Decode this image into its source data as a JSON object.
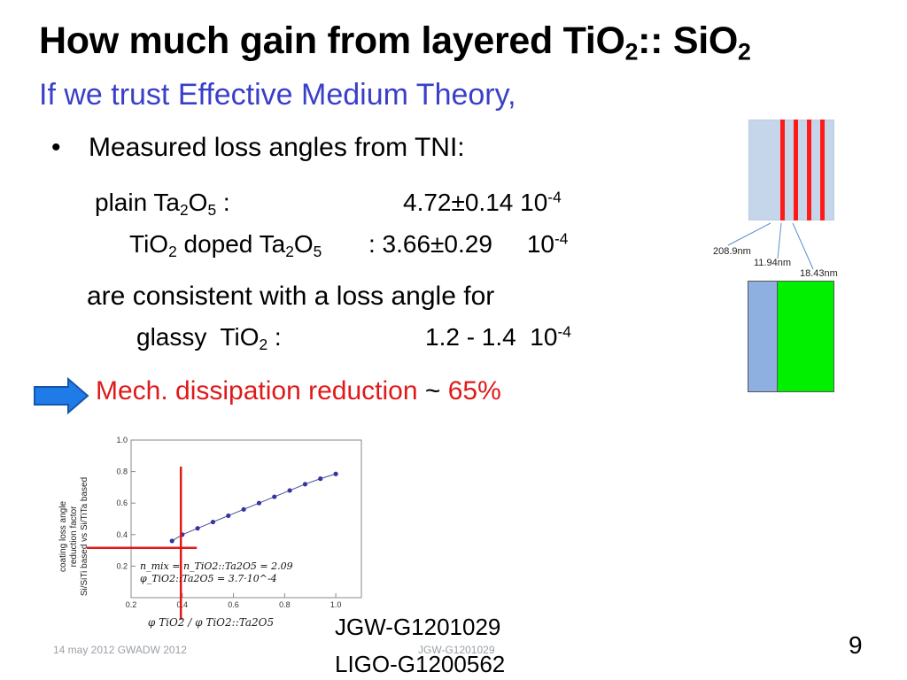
{
  "title": {
    "main": "How much gain from layered TiO",
    "sub1": "2",
    "mid": ":: SiO",
    "sub2": "2"
  },
  "subtitle": "If we trust Effective Medium Theory,",
  "bullet_char": "•",
  "bullet_text": "Measured loss angles from TNI:",
  "ta": {
    "label_a": "plain Ta",
    "s1": "2",
    "label_b": "O",
    "s2": "5",
    "label_c": " :",
    "value": "4.72±0.14 10",
    "exp": "-4"
  },
  "tio": {
    "label_a": "TiO",
    "s1": "2",
    "label_b": " doped Ta",
    "s2": "2",
    "label_c": "O",
    "s3": "5",
    "value": " : 3.66±0.29     10",
    "exp": "-4"
  },
  "consistent": "are consistent with a loss angle for",
  "glassy": {
    "label_a": "glassy  TiO",
    "s1": "2",
    "label_b": " :",
    "value": "1.2 - 1.4  10",
    "exp": "-4"
  },
  "reduction": {
    "text": "Mech. dissipation reduction ",
    "tilde": "~",
    "value": " 65%"
  },
  "stack_labels": {
    "a": "208.9nm",
    "b": "11.94nm",
    "c": "18.43nm"
  },
  "colors": {
    "title_blue": "#3a3fc8",
    "red": "#e01a1a",
    "arrow_blue": "#1f7be8",
    "green": "#00f000"
  },
  "chart_data": {
    "type": "line",
    "x": [
      0.36,
      0.4,
      0.46,
      0.52,
      0.58,
      0.64,
      0.7,
      0.76,
      0.82,
      0.88,
      0.94,
      1.0
    ],
    "y": [
      0.36,
      0.4,
      0.44,
      0.48,
      0.52,
      0.56,
      0.6,
      0.64,
      0.68,
      0.72,
      0.755,
      0.785
    ],
    "xlim": [
      0.2,
      1.1
    ],
    "ylim": [
      0.0,
      1.0
    ],
    "xticks": [
      "0.2",
      "0.4",
      "0.6",
      "0.8",
      "1.0"
    ],
    "yticks": [
      "0.2",
      "0.4",
      "0.6",
      "0.8",
      "1.0"
    ],
    "xlabel_html": "φ<sub>TiO2</sub> / φ<sub>TiO2::Ta2O5</sub>",
    "ylabel_lines": [
      "coating loss angle",
      "reduction factor",
      "Si/SiTi based vs Si/TiTa based"
    ],
    "annot1": "n_mix = n_TiO2::Ta2O5 = 2.09",
    "annot2": "φ_TiO2::Ta2O5 = 3.7·10^-4",
    "marker_x": 0.36,
    "marker_y": 0.35
  },
  "footer_left": "14 may 2012 GWADW 2012",
  "footer_mid": "JGW-G1201029",
  "jgw": "JGW-G1201029",
  "ligo": "LIGO-G1200562",
  "page_number": "9"
}
